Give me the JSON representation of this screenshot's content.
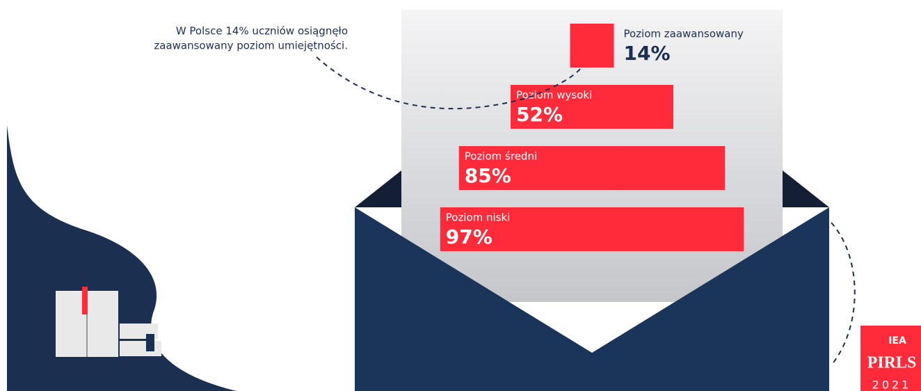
{
  "chart_data": {
    "type": "bar",
    "annotation": [
      "W Polsce 14% uczniów osiągnęło",
      "zaawansowany poziom umiejętności."
    ],
    "categories": [
      "Poziom zaawansowany",
      "Poziom wysoki",
      "Poziom średni",
      "Poziom niski"
    ],
    "values": [
      14,
      52,
      85,
      97
    ],
    "value_labels": [
      "14%",
      "52%",
      "85%",
      "97%"
    ],
    "color": "#ff2a3a",
    "xlim": [
      0,
      100
    ]
  },
  "logo": {
    "org": "IEA",
    "name": "PIRLS",
    "year": "2021"
  }
}
